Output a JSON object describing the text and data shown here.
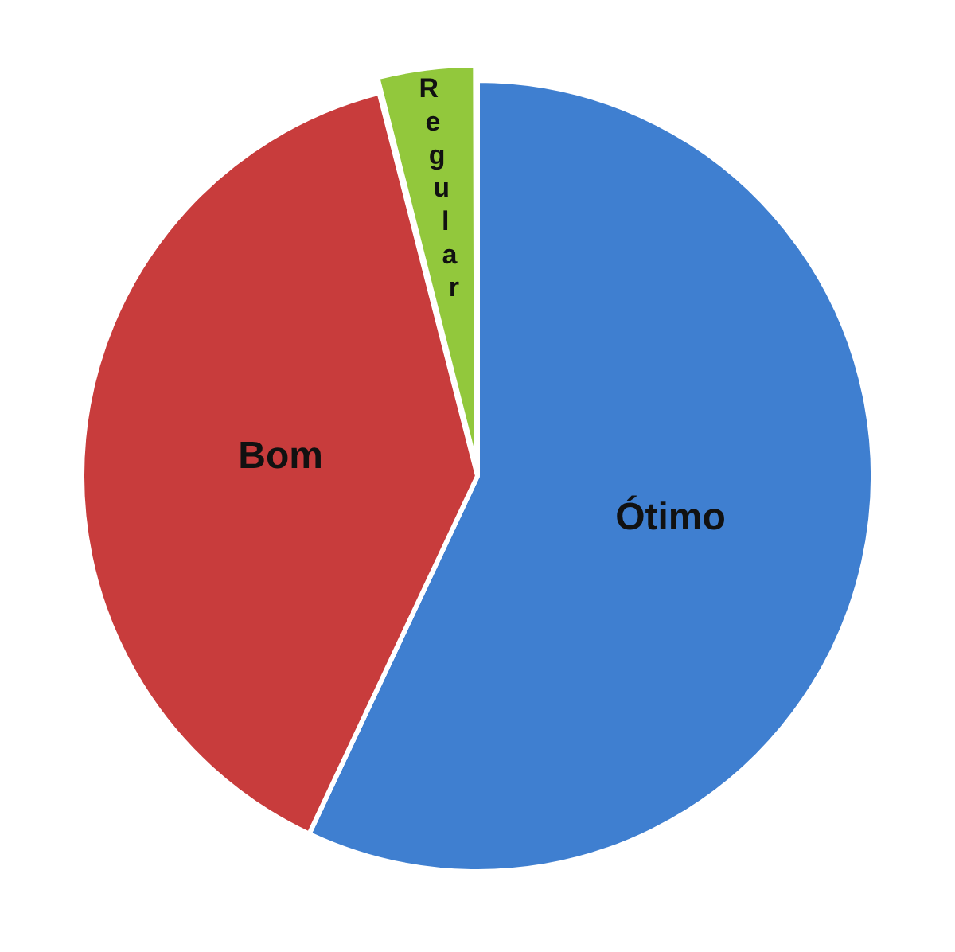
{
  "chart_data": {
    "type": "pie",
    "categories": [
      "Ótimo",
      "Bom",
      "Regular"
    ],
    "values": [
      57,
      39,
      4
    ],
    "colors": [
      "#3f7fd0",
      "#c83c3c",
      "#92c83c"
    ],
    "legend": false
  }
}
